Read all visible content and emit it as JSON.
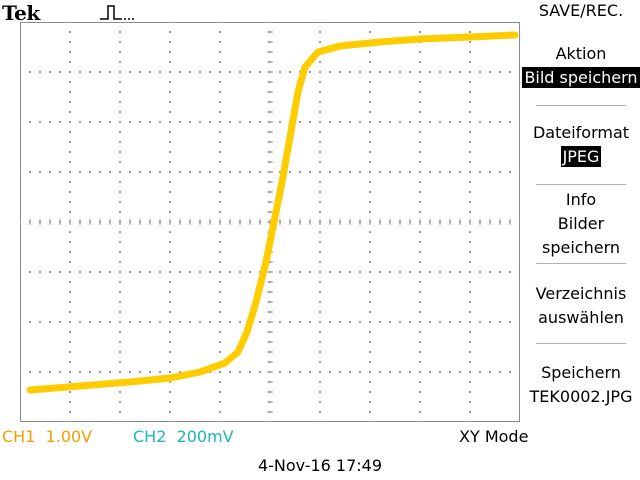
{
  "header": {
    "brand": "Tek",
    "trigger_icon": "pulse-trigger-icon",
    "menu_title": "SAVE/REC."
  },
  "menu": {
    "action_label": "Aktion",
    "action_value": "Bild speichern",
    "format_label": "Dateiformat",
    "format_value": "JPEG",
    "info_line1": "Info",
    "info_line2": "Bilder",
    "info_line3": "speichern",
    "folder_line1": "Verzeichnis",
    "folder_line2": "auswählen",
    "save_line1": "Speichern",
    "save_line2": "TEK0002.JPG"
  },
  "status": {
    "ch1": "CH1  1.00V",
    "ch2": "CH2  200mV",
    "mode": "XY Mode"
  },
  "timestamp": "4-Nov-16 17:49",
  "colors": {
    "trace": "#ffcc00",
    "ch1": "#f0a000",
    "ch2": "#1fb5b5"
  },
  "graticule": {
    "divisions_x": 10,
    "divisions_y": 8
  }
}
